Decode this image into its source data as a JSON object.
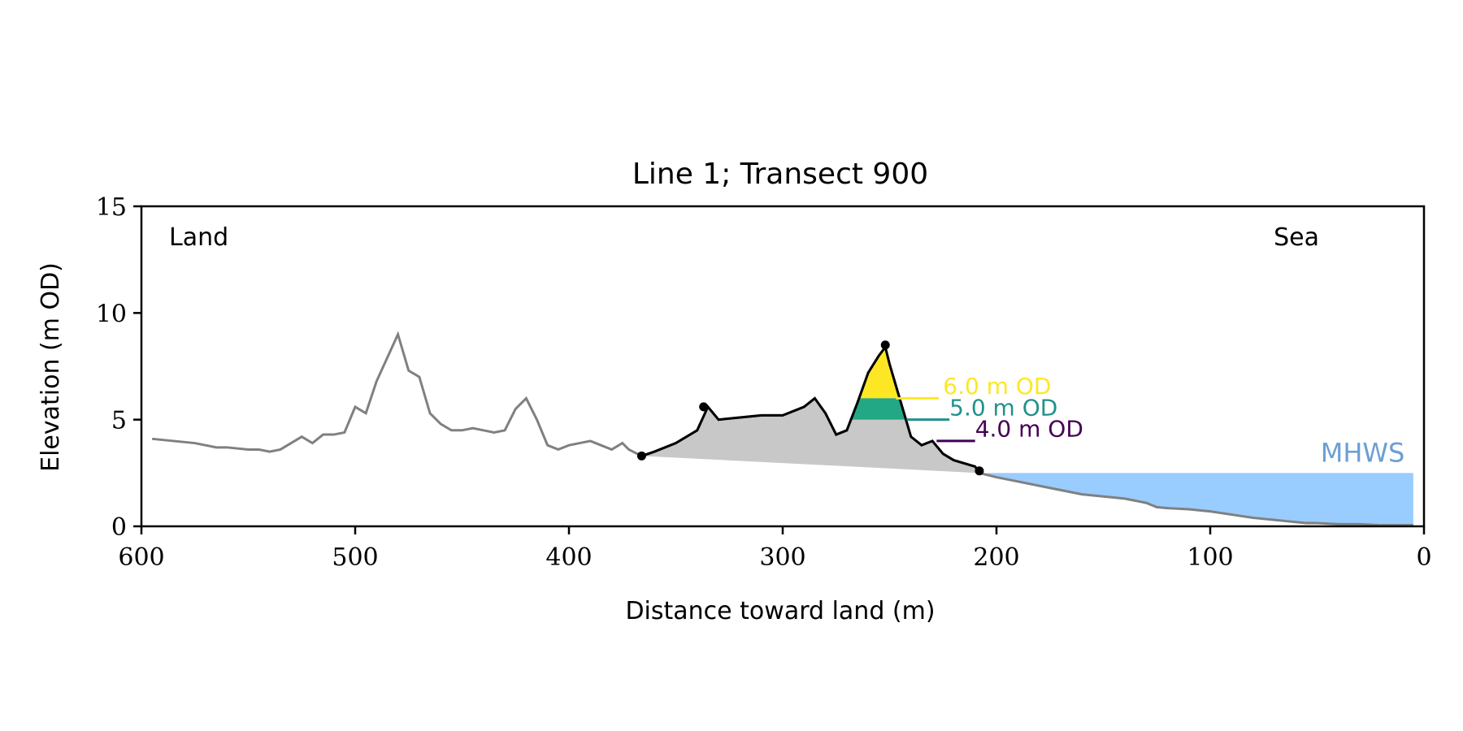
{
  "chart_data": {
    "type": "line",
    "title": "Line 1; Transect 900",
    "xlabel": "Distance toward land (m)",
    "ylabel": "Elevation (m OD)",
    "xlim": [
      600,
      0
    ],
    "ylim": [
      0,
      15
    ],
    "x_ticks": [
      600,
      500,
      400,
      300,
      200,
      100,
      0
    ],
    "y_ticks": [
      0,
      5,
      10,
      15
    ],
    "grid": false,
    "corner_labels": {
      "left": "Land",
      "right": "Sea"
    },
    "colors": {
      "profile": "#808080",
      "dune": "#000000",
      "dune_fill": "#c8c8c8",
      "water": "#99ccff",
      "mhws_text": "#6a9fd4",
      "level_6": "#fde725",
      "level_5": "#21918c",
      "level_5_fill": "#22a884",
      "level_4": "#440154"
    },
    "profile": {
      "x": [
        595,
        585,
        575,
        570,
        565,
        560,
        550,
        545,
        540,
        535,
        530,
        525,
        520,
        515,
        510,
        505,
        500,
        495,
        490,
        485,
        480,
        475,
        470,
        465,
        460,
        455,
        450,
        445,
        440,
        435,
        430,
        425,
        420,
        415,
        410,
        405,
        400,
        395,
        390,
        385,
        380,
        375,
        372,
        368,
        365,
        360,
        350,
        340,
        335,
        330,
        320,
        310,
        300,
        290,
        285,
        280,
        275,
        270,
        265,
        260,
        255,
        252,
        250,
        245,
        240,
        235,
        230,
        225,
        220,
        210,
        208,
        200,
        190,
        180,
        170,
        160,
        150,
        140,
        130,
        125,
        120,
        110,
        100,
        90,
        80,
        75,
        70,
        65,
        60,
        55,
        50,
        40,
        30,
        20,
        10,
        5
      ],
      "y": [
        4.1,
        4.0,
        3.9,
        3.8,
        3.7,
        3.7,
        3.6,
        3.6,
        3.5,
        3.6,
        3.9,
        4.2,
        3.9,
        4.3,
        4.3,
        4.4,
        5.6,
        5.3,
        6.8,
        7.9,
        9.0,
        7.3,
        7.0,
        5.3,
        4.8,
        4.5,
        4.5,
        4.6,
        4.5,
        4.4,
        4.5,
        5.5,
        6.0,
        5.0,
        3.8,
        3.6,
        3.8,
        3.9,
        4.0,
        3.8,
        3.6,
        3.9,
        3.6,
        3.4,
        3.3,
        3.5,
        3.9,
        4.5,
        5.6,
        5.0,
        5.1,
        5.2,
        5.2,
        5.6,
        6.0,
        5.3,
        4.3,
        4.5,
        5.8,
        7.2,
        8.0,
        8.4,
        7.6,
        5.9,
        4.2,
        3.8,
        4.0,
        3.4,
        3.1,
        2.8,
        2.5,
        2.3,
        2.1,
        1.9,
        1.7,
        1.5,
        1.4,
        1.3,
        1.1,
        0.9,
        0.85,
        0.8,
        0.7,
        0.55,
        0.4,
        0.35,
        0.3,
        0.25,
        0.2,
        0.15,
        0.15,
        0.1,
        0.1,
        0.05,
        0.05,
        0.05
      ]
    },
    "dune": {
      "x": [
        366,
        360,
        350,
        340,
        335,
        330,
        320,
        310,
        300,
        290,
        285,
        280,
        275,
        270,
        265,
        260,
        255,
        252,
        250,
        245,
        240,
        235,
        230,
        225,
        220,
        210,
        208
      ],
      "y": [
        3.3,
        3.5,
        3.9,
        4.5,
        5.6,
        5.0,
        5.1,
        5.2,
        5.2,
        5.6,
        6.0,
        5.3,
        4.3,
        4.5,
        5.8,
        7.2,
        8.0,
        8.4,
        7.6,
        5.9,
        4.2,
        3.8,
        4.0,
        3.4,
        3.1,
        2.8,
        2.5
      ]
    },
    "markers": [
      {
        "x": 366,
        "y": 3.3
      },
      {
        "x": 337,
        "y": 5.6
      },
      {
        "x": 252,
        "y": 8.5
      },
      {
        "x": 208,
        "y": 2.6
      }
    ],
    "water_level": {
      "label": "MHWS",
      "elevation": 2.5,
      "x_start": 205,
      "x_end": 5
    },
    "levels": [
      {
        "label": "6.0 m OD",
        "elevation": 6.0,
        "line_x": [
          247,
          227
        ],
        "text_x": 225,
        "text_y": 6.2
      },
      {
        "label": "5.0 m OD",
        "elevation": 5.0,
        "line_x": [
          242,
          222
        ],
        "text_x": 222,
        "text_y": 5.2
      },
      {
        "label": "4.0 m OD",
        "elevation": 4.0,
        "line_x": [
          228,
          210
        ],
        "text_x": 210,
        "text_y": 4.2
      }
    ]
  }
}
